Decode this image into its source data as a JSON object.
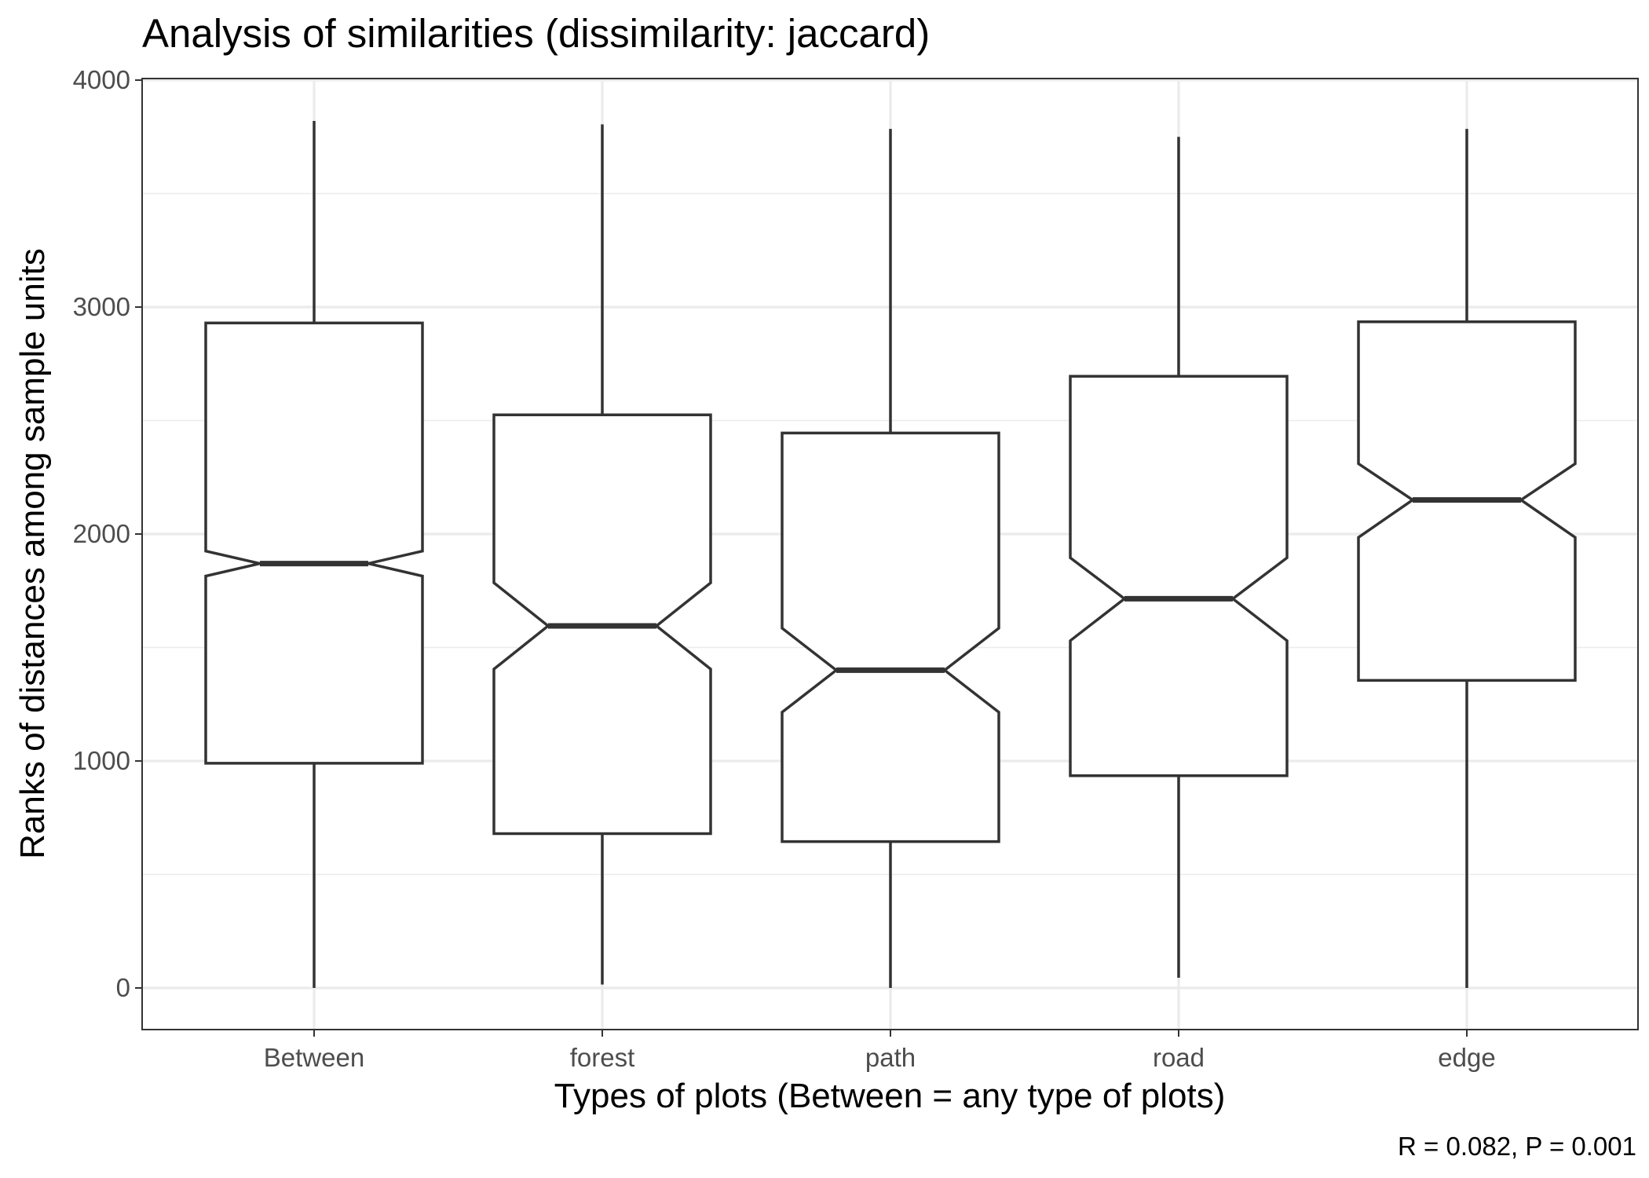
{
  "chart_data": {
    "type": "boxplot",
    "title": "Analysis of similarities (dissimilarity: jaccard)",
    "xlabel": "Types of plots (Between = any type of plots)",
    "ylabel": "Ranks of distances among sample units",
    "caption": "R = 0.082, P = 0.001",
    "notched": true,
    "grid": true,
    "ylim": [
      -180,
      4010
    ],
    "y_ticks": [
      0,
      1000,
      2000,
      3000,
      4000
    ],
    "y_tick_labels": [
      "0",
      "1000",
      "2000",
      "3000",
      "4000"
    ],
    "categories": [
      "Between",
      "forest",
      "path",
      "road",
      "edge"
    ],
    "boxes": [
      {
        "category": "Between",
        "min": 0,
        "q1": 990,
        "median": 1870,
        "q3": 2930,
        "max": 3820,
        "notch_low": 1815,
        "notch_high": 1925
      },
      {
        "category": "forest",
        "min": 15,
        "q1": 680,
        "median": 1595,
        "q3": 2525,
        "max": 3805,
        "notch_low": 1405,
        "notch_high": 1785
      },
      {
        "category": "path",
        "min": 0,
        "q1": 645,
        "median": 1400,
        "q3": 2445,
        "max": 3785,
        "notch_low": 1215,
        "notch_high": 1585
      },
      {
        "category": "road",
        "min": 45,
        "q1": 935,
        "median": 1715,
        "q3": 2695,
        "max": 3750,
        "notch_low": 1530,
        "notch_high": 1895
      },
      {
        "category": "edge",
        "min": 0,
        "q1": 1355,
        "median": 2150,
        "q3": 2935,
        "max": 3785,
        "notch_low": 1985,
        "notch_high": 2310
      }
    ]
  }
}
